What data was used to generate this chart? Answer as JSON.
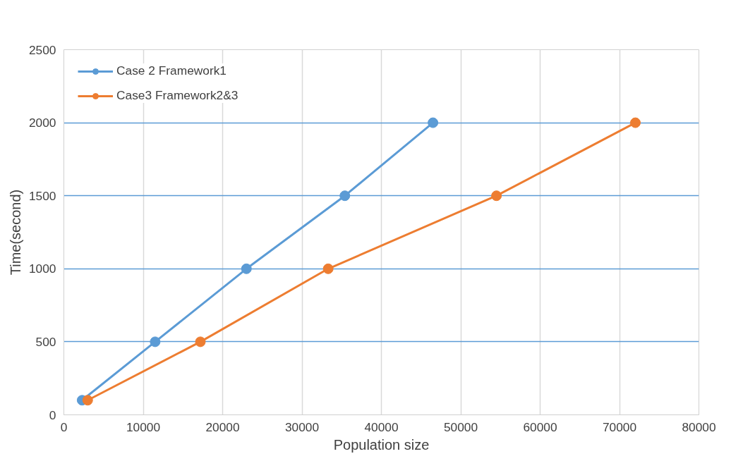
{
  "chart_data": {
    "type": "line",
    "xlabel": "Population size",
    "ylabel": "Time(second)",
    "xlim": [
      0,
      80000
    ],
    "xticks": [
      0,
      10000,
      20000,
      30000,
      40000,
      50000,
      60000,
      70000,
      80000
    ],
    "ylim": [
      0,
      2500
    ],
    "yticks": [
      0,
      500,
      1000,
      1500,
      2000,
      2500
    ],
    "grid": true,
    "legend": "top left",
    "marker": "circle",
    "line_style": "solid",
    "series": [
      {
        "name": "Case 2 Framework1",
        "color": "#5b9bd5",
        "x": [
          2300,
          11500,
          23000,
          35400,
          46500
        ],
        "values": [
          100,
          500,
          1000,
          1500,
          2000
        ]
      },
      {
        "name": "Case3 Framework2&3",
        "color": "#ed7d31",
        "x": [
          3000,
          17200,
          33300,
          54500,
          72000
        ],
        "values": [
          100,
          500,
          1000,
          1500,
          2000
        ]
      }
    ]
  }
}
